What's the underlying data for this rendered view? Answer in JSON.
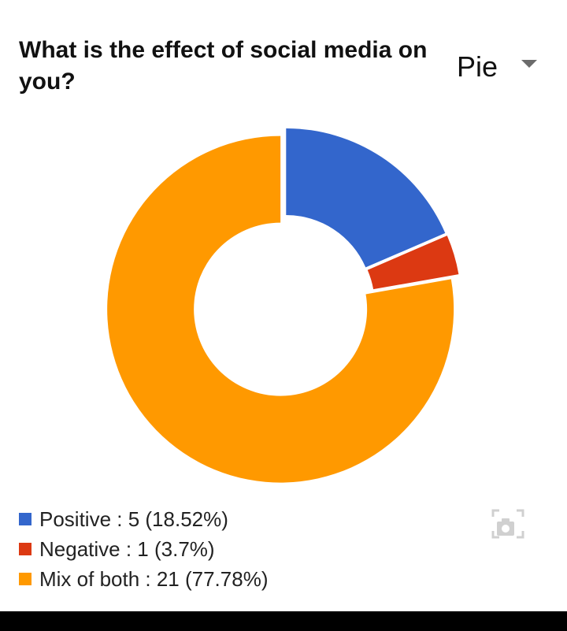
{
  "question": {
    "title": "What is the effect of social media on you?"
  },
  "chart_type_selector": {
    "label": "Pie"
  },
  "chart_data": {
    "type": "pie",
    "title": "What is the effect of social media on you?",
    "donut": true,
    "labels": [
      "Positive",
      "Negative",
      "Mix of both"
    ],
    "values": [
      5,
      1,
      21
    ],
    "percentages": [
      18.52,
      3.7,
      77.78
    ],
    "colors": [
      "#3366cc",
      "#dc3912",
      "#ff9900"
    ],
    "legend_position": "bottom"
  },
  "legend": {
    "items": [
      {
        "text": "Positive : 5 (18.52%)",
        "color": "#3366cc"
      },
      {
        "text": "Negative : 1 (3.7%)",
        "color": "#dc3912"
      },
      {
        "text": "Mix of both : 21 (77.78%)",
        "color": "#ff9900"
      }
    ]
  },
  "icons": {
    "snapshot": "camera-screenshot-icon"
  }
}
